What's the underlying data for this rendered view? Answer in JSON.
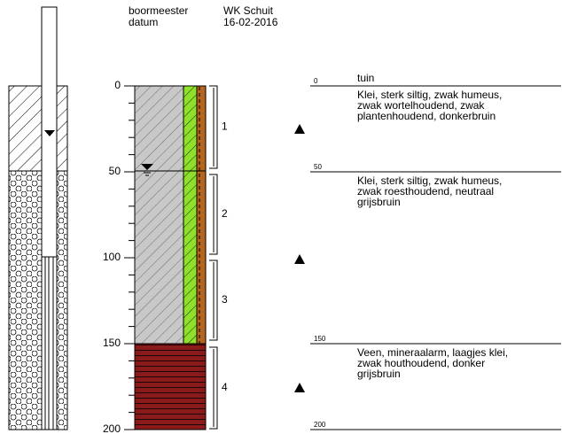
{
  "header": {
    "rows": [
      [
        "boormeester",
        "WK Schuit"
      ],
      [
        "datum",
        "16-02-2016"
      ]
    ]
  },
  "depth_axis": {
    "ticks": [
      0,
      50,
      100,
      150,
      200
    ]
  },
  "samples": [
    1,
    2,
    3,
    4
  ],
  "layers": [
    {
      "depth": 0,
      "remark": "tuin",
      "lines": [
        "Klei, sterk siltig, zwak humeus,",
        "zwak wortelhoudend, zwak",
        "plantenhoudend, donkerbruin"
      ]
    },
    {
      "depth": 50,
      "lines": [
        "Klei, sterk siltig, zwak humeus,",
        "zwak roesthoudend, neutraal",
        "grijsbruin"
      ]
    },
    {
      "depth": 150,
      "lines": [
        "Veen, mineraalarm, laagjes klei,",
        "zwak houthoudend, donker",
        "grijsbruin"
      ]
    },
    {
      "depth": 200
    }
  ]
}
